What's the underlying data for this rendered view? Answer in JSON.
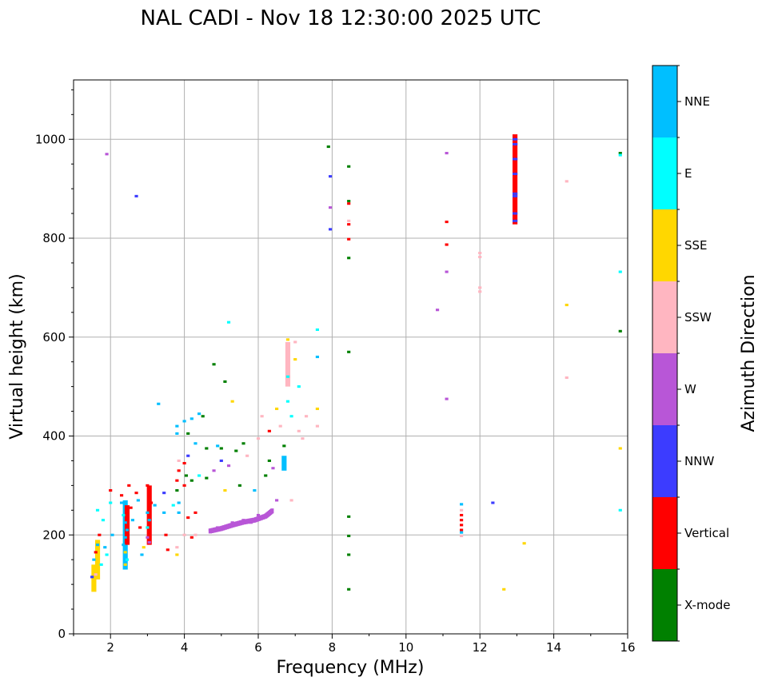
{
  "chart_data": {
    "type": "scatter",
    "title": "NAL CADI - Nov 18 12:30:00 2025 UTC",
    "xlabel": "Frequency (MHz)",
    "ylabel": "Virtual height (km)",
    "xlim": [
      1,
      16
    ],
    "ylim": [
      0,
      1120
    ],
    "xticks": [
      2,
      4,
      6,
      8,
      10,
      12,
      14,
      16
    ],
    "yticks": [
      0,
      200,
      400,
      600,
      800,
      1000
    ],
    "grid": true,
    "colorbar": {
      "title": "Azimuth Direction",
      "categories": [
        {
          "name": "X-mode",
          "color": "#008000"
        },
        {
          "name": "Vertical",
          "color": "#ff0000"
        },
        {
          "name": "NNW",
          "color": "#3c3cff"
        },
        {
          "name": "W",
          "color": "#b856d7"
        },
        {
          "name": "SSW",
          "color": "#ffb6c1"
        },
        {
          "name": "SSE",
          "color": "#ffd700"
        },
        {
          "name": "E",
          "color": "#00ffff"
        },
        {
          "name": "NNE",
          "color": "#00bfff"
        }
      ]
    },
    "cell": {
      "df": 0.09,
      "dh": 5
    },
    "points": [
      {
        "f": 1.55,
        "h": 95,
        "dir": "SSE"
      },
      {
        "f": 1.6,
        "h": 120,
        "dir": "SSW"
      },
      {
        "f": 1.55,
        "h": 150,
        "dir": "NNE"
      },
      {
        "f": 1.6,
        "h": 165,
        "dir": "Vertical"
      },
      {
        "f": 1.65,
        "h": 180,
        "dir": "NNE"
      },
      {
        "f": 1.7,
        "h": 200,
        "dir": "Vertical"
      },
      {
        "f": 1.75,
        "h": 140,
        "dir": "E"
      },
      {
        "f": 1.8,
        "h": 230,
        "dir": "E"
      },
      {
        "f": 1.5,
        "h": 115,
        "dir": "NNW"
      },
      {
        "f": 1.65,
        "h": 250,
        "dir": "E"
      },
      {
        "f": 1.85,
        "h": 175,
        "dir": "NNE"
      },
      {
        "f": 1.9,
        "h": 160,
        "dir": "E"
      },
      {
        "f": 2.0,
        "h": 290,
        "dir": "Vertical"
      },
      {
        "f": 2.0,
        "h": 265,
        "dir": "E"
      },
      {
        "f": 2.05,
        "h": 200,
        "dir": "NNE"
      },
      {
        "f": 2.3,
        "h": 280,
        "dir": "Vertical"
      },
      {
        "f": 2.3,
        "h": 265,
        "dir": "NNE"
      },
      {
        "f": 2.35,
        "h": 240,
        "dir": "E"
      },
      {
        "f": 2.4,
        "h": 225,
        "dir": "NNE"
      },
      {
        "f": 2.45,
        "h": 210,
        "dir": "NNE"
      },
      {
        "f": 2.4,
        "h": 195,
        "dir": "NNE"
      },
      {
        "f": 2.35,
        "h": 180,
        "dir": "NNE"
      },
      {
        "f": 2.4,
        "h": 165,
        "dir": "SSE"
      },
      {
        "f": 2.45,
        "h": 150,
        "dir": "E"
      },
      {
        "f": 2.4,
        "h": 140,
        "dir": "SSE"
      },
      {
        "f": 2.5,
        "h": 300,
        "dir": "Vertical"
      },
      {
        "f": 2.55,
        "h": 255,
        "dir": "Vertical"
      },
      {
        "f": 2.6,
        "h": 230,
        "dir": "NNE"
      },
      {
        "f": 2.7,
        "h": 285,
        "dir": "Vertical"
      },
      {
        "f": 2.75,
        "h": 270,
        "dir": "NNE"
      },
      {
        "f": 2.8,
        "h": 215,
        "dir": "Vertical"
      },
      {
        "f": 2.85,
        "h": 160,
        "dir": "NNE"
      },
      {
        "f": 2.9,
        "h": 175,
        "dir": "SSE"
      },
      {
        "f": 3.0,
        "h": 300,
        "dir": "Vertical"
      },
      {
        "f": 3.05,
        "h": 280,
        "dir": "Vertical"
      },
      {
        "f": 3.1,
        "h": 265,
        "dir": "Vertical"
      },
      {
        "f": 3.0,
        "h": 245,
        "dir": "NNE"
      },
      {
        "f": 3.05,
        "h": 230,
        "dir": "NNE"
      },
      {
        "f": 3.0,
        "h": 215,
        "dir": "E"
      },
      {
        "f": 3.0,
        "h": 195,
        "dir": "W"
      },
      {
        "f": 3.05,
        "h": 185,
        "dir": "W"
      },
      {
        "f": 3.2,
        "h": 260,
        "dir": "NNE"
      },
      {
        "f": 3.3,
        "h": 465,
        "dir": "NNE"
      },
      {
        "f": 3.45,
        "h": 245,
        "dir": "NNE"
      },
      {
        "f": 3.5,
        "h": 200,
        "dir": "Vertical"
      },
      {
        "f": 3.55,
        "h": 170,
        "dir": "Vertical"
      },
      {
        "f": 3.45,
        "h": 285,
        "dir": "NNW"
      },
      {
        "f": 3.7,
        "h": 260,
        "dir": "E"
      },
      {
        "f": 3.8,
        "h": 310,
        "dir": "Vertical"
      },
      {
        "f": 3.85,
        "h": 330,
        "dir": "Vertical"
      },
      {
        "f": 3.8,
        "h": 290,
        "dir": "X-mode"
      },
      {
        "f": 3.8,
        "h": 420,
        "dir": "NNE"
      },
      {
        "f": 3.8,
        "h": 405,
        "dir": "NNE"
      },
      {
        "f": 3.85,
        "h": 350,
        "dir": "SSW"
      },
      {
        "f": 3.85,
        "h": 265,
        "dir": "NNE"
      },
      {
        "f": 3.85,
        "h": 245,
        "dir": "NNE"
      },
      {
        "f": 3.8,
        "h": 175,
        "dir": "SSW"
      },
      {
        "f": 3.8,
        "h": 160,
        "dir": "SSE"
      },
      {
        "f": 4.0,
        "h": 300,
        "dir": "Vertical"
      },
      {
        "f": 4.0,
        "h": 345,
        "dir": "Vertical"
      },
      {
        "f": 4.05,
        "h": 320,
        "dir": "X-mode"
      },
      {
        "f": 4.0,
        "h": 430,
        "dir": "NNE"
      },
      {
        "f": 4.1,
        "h": 405,
        "dir": "X-mode"
      },
      {
        "f": 4.1,
        "h": 360,
        "dir": "NNW"
      },
      {
        "f": 4.1,
        "h": 235,
        "dir": "Vertical"
      },
      {
        "f": 4.0,
        "h": 200,
        "dir": "SSW"
      },
      {
        "f": 4.2,
        "h": 435,
        "dir": "NNE"
      },
      {
        "f": 4.3,
        "h": 385,
        "dir": "NNE"
      },
      {
        "f": 4.2,
        "h": 310,
        "dir": "X-mode"
      },
      {
        "f": 4.3,
        "h": 245,
        "dir": "Vertical"
      },
      {
        "f": 4.3,
        "h": 200,
        "dir": "SSW"
      },
      {
        "f": 4.4,
        "h": 445,
        "dir": "NNE"
      },
      {
        "f": 4.4,
        "h": 320,
        "dir": "E"
      },
      {
        "f": 4.5,
        "h": 440,
        "dir": "X-mode"
      },
      {
        "f": 4.6,
        "h": 315,
        "dir": "X-mode"
      },
      {
        "f": 4.6,
        "h": 375,
        "dir": "X-mode"
      },
      {
        "f": 4.2,
        "h": 195,
        "dir": "Vertical"
      },
      {
        "f": 4.7,
        "h": 210,
        "dir": "W"
      },
      {
        "f": 4.8,
        "h": 545,
        "dir": "X-mode"
      },
      {
        "f": 4.8,
        "h": 330,
        "dir": "W"
      },
      {
        "f": 4.9,
        "h": 380,
        "dir": "NNE"
      },
      {
        "f": 4.9,
        "h": 215,
        "dir": "W"
      },
      {
        "f": 5.0,
        "h": 375,
        "dir": "X-mode"
      },
      {
        "f": 5.0,
        "h": 350,
        "dir": "NNW"
      },
      {
        "f": 5.1,
        "h": 510,
        "dir": "X-mode"
      },
      {
        "f": 5.1,
        "h": 290,
        "dir": "SSE"
      },
      {
        "f": 5.2,
        "h": 630,
        "dir": "E"
      },
      {
        "f": 5.2,
        "h": 340,
        "dir": "W"
      },
      {
        "f": 5.3,
        "h": 470,
        "dir": "SSE"
      },
      {
        "f": 5.3,
        "h": 225,
        "dir": "W"
      },
      {
        "f": 5.4,
        "h": 370,
        "dir": "X-mode"
      },
      {
        "f": 5.5,
        "h": 300,
        "dir": "X-mode"
      },
      {
        "f": 5.6,
        "h": 385,
        "dir": "X-mode"
      },
      {
        "f": 5.6,
        "h": 230,
        "dir": "W"
      },
      {
        "f": 5.7,
        "h": 360,
        "dir": "SSW"
      },
      {
        "f": 5.8,
        "h": 225,
        "dir": "W"
      },
      {
        "f": 5.9,
        "h": 290,
        "dir": "NNE"
      },
      {
        "f": 6.0,
        "h": 395,
        "dir": "SSW"
      },
      {
        "f": 6.0,
        "h": 240,
        "dir": "W"
      },
      {
        "f": 6.1,
        "h": 440,
        "dir": "SSW"
      },
      {
        "f": 6.2,
        "h": 320,
        "dir": "X-mode"
      },
      {
        "f": 6.3,
        "h": 410,
        "dir": "Vertical"
      },
      {
        "f": 6.3,
        "h": 350,
        "dir": "X-mode"
      },
      {
        "f": 6.4,
        "h": 335,
        "dir": "W"
      },
      {
        "f": 6.5,
        "h": 455,
        "dir": "SSE"
      },
      {
        "f": 6.5,
        "h": 270,
        "dir": "W"
      },
      {
        "f": 6.6,
        "h": 420,
        "dir": "SSW"
      },
      {
        "f": 6.7,
        "h": 345,
        "dir": "NNE"
      },
      {
        "f": 6.7,
        "h": 380,
        "dir": "X-mode"
      },
      {
        "f": 6.8,
        "h": 595,
        "dir": "SSE"
      },
      {
        "f": 6.8,
        "h": 520,
        "dir": "E"
      },
      {
        "f": 6.8,
        "h": 470,
        "dir": "E"
      },
      {
        "f": 6.9,
        "h": 440,
        "dir": "E"
      },
      {
        "f": 6.9,
        "h": 270,
        "dir": "SSW"
      },
      {
        "f": 7.0,
        "h": 590,
        "dir": "SSW"
      },
      {
        "f": 7.0,
        "h": 555,
        "dir": "SSE"
      },
      {
        "f": 7.1,
        "h": 500,
        "dir": "E"
      },
      {
        "f": 7.1,
        "h": 410,
        "dir": "SSW"
      },
      {
        "f": 7.2,
        "h": 395,
        "dir": "SSW"
      },
      {
        "f": 7.3,
        "h": 440,
        "dir": "SSW"
      },
      {
        "f": 7.6,
        "h": 615,
        "dir": "E"
      },
      {
        "f": 7.6,
        "h": 560,
        "dir": "NNE"
      },
      {
        "f": 7.6,
        "h": 455,
        "dir": "SSE"
      },
      {
        "f": 7.6,
        "h": 420,
        "dir": "SSW"
      },
      {
        "f": 7.9,
        "h": 985,
        "dir": "X-mode"
      },
      {
        "f": 7.95,
        "h": 925,
        "dir": "NNW"
      },
      {
        "f": 7.95,
        "h": 862,
        "dir": "W"
      },
      {
        "f": 7.95,
        "h": 818,
        "dir": "NNW"
      },
      {
        "f": 8.45,
        "h": 945,
        "dir": "X-mode"
      },
      {
        "f": 8.45,
        "h": 875,
        "dir": "X-mode"
      },
      {
        "f": 8.45,
        "h": 870,
        "dir": "Vertical"
      },
      {
        "f": 8.45,
        "h": 835,
        "dir": "SSW"
      },
      {
        "f": 8.45,
        "h": 828,
        "dir": "Vertical"
      },
      {
        "f": 8.45,
        "h": 798,
        "dir": "Vertical"
      },
      {
        "f": 8.45,
        "h": 760,
        "dir": "X-mode"
      },
      {
        "f": 8.45,
        "h": 570,
        "dir": "X-mode"
      },
      {
        "f": 8.45,
        "h": 237,
        "dir": "X-mode"
      },
      {
        "f": 8.45,
        "h": 198,
        "dir": "X-mode"
      },
      {
        "f": 8.45,
        "h": 160,
        "dir": "X-mode"
      },
      {
        "f": 8.45,
        "h": 90,
        "dir": "X-mode"
      },
      {
        "f": 2.7,
        "h": 885,
        "dir": "NNW"
      },
      {
        "f": 1.9,
        "h": 970,
        "dir": "W"
      },
      {
        "f": 10.85,
        "h": 655,
        "dir": "W"
      },
      {
        "f": 11.1,
        "h": 972,
        "dir": "W"
      },
      {
        "f": 11.1,
        "h": 833,
        "dir": "Vertical"
      },
      {
        "f": 11.1,
        "h": 787,
        "dir": "Vertical"
      },
      {
        "f": 11.1,
        "h": 732,
        "dir": "W"
      },
      {
        "f": 11.1,
        "h": 475,
        "dir": "W"
      },
      {
        "f": 11.5,
        "h": 262,
        "dir": "NNE"
      },
      {
        "f": 11.5,
        "h": 250,
        "dir": "SSW"
      },
      {
        "f": 11.5,
        "h": 240,
        "dir": "Vertical"
      },
      {
        "f": 11.5,
        "h": 230,
        "dir": "Vertical"
      },
      {
        "f": 11.5,
        "h": 220,
        "dir": "Vertical"
      },
      {
        "f": 11.5,
        "h": 210,
        "dir": "Vertical"
      },
      {
        "f": 11.5,
        "h": 205,
        "dir": "NNE"
      },
      {
        "f": 11.5,
        "h": 198,
        "dir": "SSW"
      },
      {
        "f": 12.0,
        "h": 770,
        "dir": "SSW"
      },
      {
        "f": 12.0,
        "h": 762,
        "dir": "SSW"
      },
      {
        "f": 12.0,
        "h": 700,
        "dir": "SSW"
      },
      {
        "f": 12.0,
        "h": 692,
        "dir": "SSW"
      },
      {
        "f": 12.35,
        "h": 265,
        "dir": "NNW"
      },
      {
        "f": 12.65,
        "h": 90,
        "dir": "SSE"
      },
      {
        "f": 13.2,
        "h": 183,
        "dir": "SSE"
      },
      {
        "f": 14.35,
        "h": 915,
        "dir": "SSW"
      },
      {
        "f": 14.35,
        "h": 665,
        "dir": "SSE"
      },
      {
        "f": 14.35,
        "h": 518,
        "dir": "SSW"
      },
      {
        "f": 15.8,
        "h": 972,
        "dir": "X-mode"
      },
      {
        "f": 15.8,
        "h": 968,
        "dir": "E"
      },
      {
        "f": 15.8,
        "h": 732,
        "dir": "E"
      },
      {
        "f": 15.8,
        "h": 612,
        "dir": "X-mode"
      },
      {
        "f": 15.8,
        "h": 375,
        "dir": "SSE"
      },
      {
        "f": 15.8,
        "h": 250,
        "dir": "E"
      }
    ],
    "segments": [
      {
        "f": 12.95,
        "h0": 828,
        "h1": 1010,
        "dir": "Vertical"
      },
      {
        "f": 1.55,
        "h0": 85,
        "h1": 140,
        "dir": "SSE"
      },
      {
        "f": 1.65,
        "h0": 110,
        "h1": 190,
        "dir": "SSE"
      },
      {
        "f": 2.4,
        "h0": 130,
        "h1": 270,
        "dir": "NNE"
      },
      {
        "f": 2.45,
        "h0": 180,
        "h1": 260,
        "dir": "Vertical"
      },
      {
        "f": 3.05,
        "h0": 180,
        "h1": 300,
        "dir": "Vertical"
      },
      {
        "f": 6.7,
        "h0": 330,
        "h1": 360,
        "dir": "NNE"
      },
      {
        "f": 6.8,
        "h0": 500,
        "h1": 590,
        "dir": "SSW"
      }
    ],
    "traces": [
      {
        "dir": "W",
        "f": [
          4.7,
          5.0,
          5.3,
          5.6,
          5.9,
          6.2,
          6.4
        ],
        "h": [
          208,
          213,
          220,
          226,
          230,
          238,
          250
        ]
      }
    ],
    "detail_bands": [
      {
        "f": 12.95,
        "h": [
          835,
          850,
          885,
          890,
          930,
          960,
          990,
          1000
        ],
        "dir": "NNW"
      }
    ]
  }
}
